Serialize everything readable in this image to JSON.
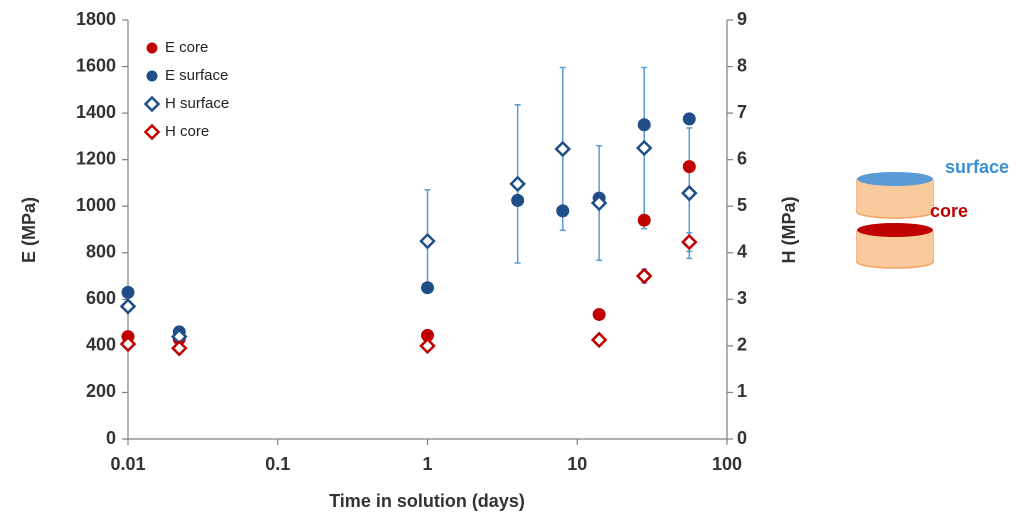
{
  "chart_data": {
    "type": "scatter",
    "x_label": "Time in solution (days)",
    "y_label": "E (MPa)",
    "y2_label": "H (MPa)",
    "x_log": true,
    "xlim": [
      0.01,
      100
    ],
    "xticks": [
      0.01,
      0.1,
      1,
      10,
      100
    ],
    "ylim": [
      0,
      1800
    ],
    "yticks": [
      0,
      200,
      400,
      600,
      800,
      1000,
      1200,
      1400,
      1600,
      1800
    ],
    "y2lim": [
      0,
      9
    ],
    "y2ticks": [
      0,
      1,
      2,
      3,
      4,
      5,
      6,
      7,
      8,
      9
    ],
    "legend": "top-left",
    "error_color": "#5b9bd5",
    "annotations": [
      "surface",
      "core"
    ],
    "series": [
      {
        "name": "E core",
        "color": "#c00000",
        "marker": "circle",
        "axis": "y",
        "x": [
          0.01,
          0.022,
          1,
          14,
          28,
          56
        ],
        "values": [
          440,
          430,
          445,
          535,
          940,
          1170
        ]
      },
      {
        "name": "E surface",
        "color": "#1f4e89",
        "marker": "circle",
        "axis": "y",
        "x": [
          0.01,
          0.022,
          1,
          4,
          8,
          14,
          28,
          56
        ],
        "values": [
          630,
          460,
          650,
          1025,
          980,
          1035,
          1350,
          1375
        ]
      },
      {
        "name": "H surface",
        "color": "#1f4e89",
        "marker": "diamond",
        "axis": "y2",
        "x": [
          0.01,
          0.022,
          1,
          4,
          8,
          14,
          28,
          56
        ],
        "values": [
          2.85,
          2.2,
          4.25,
          5.48,
          6.23,
          5.07,
          6.25,
          5.28
        ],
        "errors": [
          0.1,
          0.15,
          1.1,
          1.7,
          1.75,
          1.23,
          1.73,
          1.4
        ]
      },
      {
        "name": "H core",
        "color": "#c00000",
        "marker": "diamond",
        "axis": "y2",
        "x": [
          0.01,
          0.022,
          1,
          14,
          28,
          56
        ],
        "values": [
          2.04,
          1.95,
          2.0,
          2.13,
          3.5,
          4.23
        ],
        "errors": [
          0.05,
          0.08,
          0.05,
          0.05,
          0.15,
          0.2
        ]
      }
    ]
  }
}
